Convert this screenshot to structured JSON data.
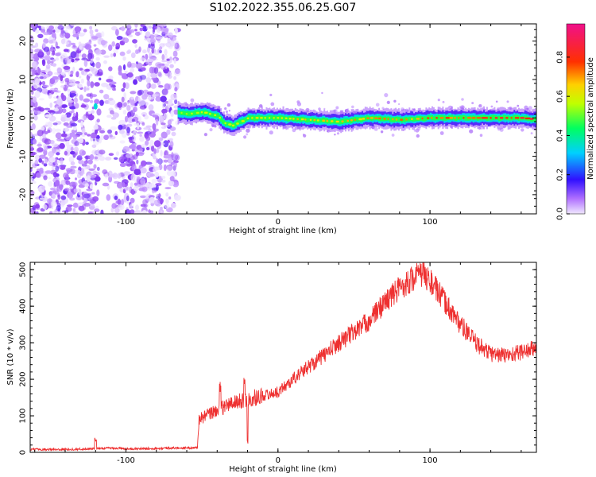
{
  "title": "S102.2022.355.06.25.G07",
  "colors": {
    "snr_line": "#ee3030",
    "background": "#ffffff",
    "axis": "#000000"
  },
  "chart_data": [
    {
      "type": "heatmap",
      "name": "spectrogram",
      "xlabel": "Height of straight line (km)",
      "ylabel": "Frequency (Hz)",
      "xlim": [
        -163,
        170
      ],
      "ylim": [
        -25,
        24.5
      ],
      "xticks": [
        -100,
        0,
        100
      ],
      "yticks": [
        -20,
        -10,
        0,
        10,
        20
      ],
      "grid": false,
      "colorbar": {
        "label": "Normalized spectral amplitude",
        "range": [
          0,
          0.97
        ],
        "ticks": [
          0.0,
          0.2,
          0.4,
          0.6,
          0.8
        ],
        "colormap": "rainbow (purple→blue→cyan→green→yellow→orange→red→magenta)"
      },
      "regions": [
        {
          "x_range": [
            -163,
            -66
          ],
          "description_values": {
            "noise_amplitude_range": [
              0.0,
              0.15
            ]
          }
        },
        {
          "x_range": [
            -66,
            170
          ],
          "description_values": {
            "carrier_amplitude_range": [
              0.3,
              0.9
            ]
          }
        }
      ],
      "carrier_track": {
        "x": [
          -66,
          -60,
          -50,
          -40,
          -35,
          -30,
          -25,
          -20,
          0,
          20,
          40,
          60,
          80,
          100,
          120,
          140,
          160,
          170
        ],
        "y": [
          1.5,
          1.0,
          1.5,
          0.5,
          -1.5,
          -2.0,
          -1.0,
          0.0,
          0.0,
          -0.5,
          -1.0,
          0.0,
          -0.5,
          0.0,
          0.0,
          0.0,
          0.0,
          -0.5
        ]
      }
    },
    {
      "type": "line",
      "name": "snr",
      "xlabel": "Height of straight line (km)",
      "ylabel": "SNR (10 * v/v)",
      "xlim": [
        -163,
        170
      ],
      "ylim": [
        0,
        520
      ],
      "xticks": [
        -100,
        0,
        100
      ],
      "yticks": [
        0,
        100,
        200,
        300,
        400,
        500
      ],
      "grid": false,
      "series": [
        {
          "x": [
            -163,
            -140,
            -120,
            -110,
            -100,
            -90,
            -80,
            -70,
            -60,
            -53,
            -52,
            -45,
            -38,
            -30,
            -20,
            -10,
            0,
            10,
            20,
            30,
            40,
            50,
            60,
            70,
            80,
            90,
            95,
            100,
            110,
            120,
            130,
            140,
            150,
            160,
            170
          ],
          "values": [
            8,
            8,
            10,
            12,
            10,
            10,
            11,
            12,
            12,
            13,
            90,
            105,
            120,
            135,
            145,
            155,
            165,
            200,
            235,
            265,
            300,
            330,
            360,
            410,
            450,
            480,
            490,
            470,
            410,
            350,
            300,
            270,
            265,
            275,
            285
          ]
        }
      ],
      "annotations": {
        "spike_x": -120,
        "spike_y": 40,
        "dip_x": -20,
        "dip_y": 20
      }
    }
  ]
}
